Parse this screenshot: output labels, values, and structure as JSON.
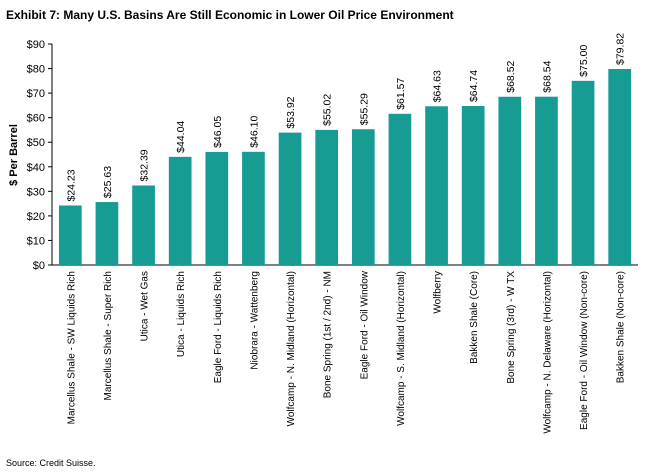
{
  "chart_data": {
    "type": "bar",
    "title": "Exhibit 7: Many U.S. Basins Are Still Economic in Lower Oil Price Environment",
    "ylabel": "$ Per Barrel",
    "xlabel": "",
    "ylim": [
      0,
      90
    ],
    "y_ticks": [
      "$0",
      "$10",
      "$20",
      "$30",
      "$40",
      "$50",
      "$60",
      "$70",
      "$80",
      "$90"
    ],
    "grid": false,
    "bar_color": "#169C93",
    "categories": [
      "Marcellus Shale - SW Liquids Rich",
      "Marcellus Shale - Super Rich",
      "Utica - Wet Gas",
      "Utica - Liquids Rich",
      "Eagle Ford - Liquids Rich",
      "Niobrara - Wattenberg",
      "Wolfcamp - N. Midland (Horizontal)",
      "Bone Spring (1st / 2nd) - NM",
      "Eagle Ford - Oil Window",
      "Wolfcamp - S. Midland (Horizontal)",
      "Wolfberry",
      "Bakken Shale (Core)",
      "Bone Spring (3rd) - W TX",
      "Wolfcamp - N. Delaware (Horizontal)",
      "Eagle Ford - Oil Window (Non-core)",
      "Bakken Shale (Non-core)"
    ],
    "values": [
      24.23,
      25.63,
      32.39,
      44.04,
      46.05,
      46.1,
      53.92,
      55.02,
      55.29,
      61.57,
      64.63,
      64.74,
      68.52,
      68.54,
      75.0,
      79.82
    ],
    "value_labels": [
      "$24.23",
      "$25.63",
      "$32.39",
      "$44.04",
      "$46.05",
      "$46.10",
      "$53.92",
      "$55.02",
      "$55.29",
      "$61.57",
      "$64.63",
      "$64.74",
      "$68.52",
      "$68.54",
      "$75.00",
      "$79.82"
    ],
    "source": "Source: Credit Suisse."
  }
}
